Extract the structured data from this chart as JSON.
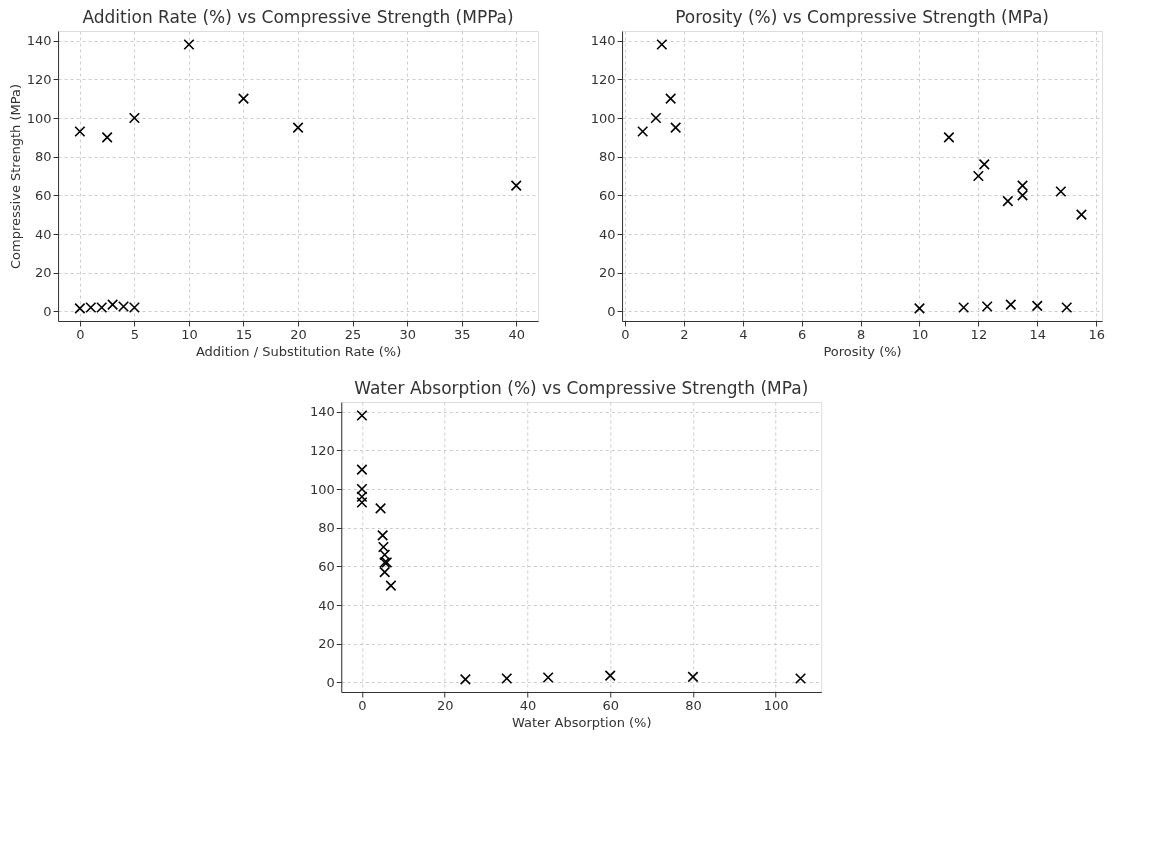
{
  "chart_data": [
    {
      "type": "scatter",
      "title": "Addition Rate (%) vs Compressive Strength (MPPa)",
      "xlabel": "Addition / Substitution Rate (%)",
      "ylabel": "Compressive Strength (MPa)",
      "marker": "cross",
      "grid": true,
      "xlim": [
        -2,
        42
      ],
      "xticks": [
        0,
        5,
        10,
        15,
        20,
        25,
        30,
        35,
        40
      ],
      "ylim": [
        -5,
        145
      ],
      "yticks": [
        0,
        20,
        40,
        60,
        80,
        100,
        120,
        140
      ],
      "series": [
        {
          "color": "#000000",
          "x": [
            0,
            1,
            2,
            3,
            4,
            5,
            0,
            2.5,
            5,
            10,
            15,
            20,
            40
          ],
          "values": [
            1.5,
            2,
            2,
            3.5,
            2.5,
            2,
            93,
            90,
            100,
            138,
            110,
            95,
            65
          ]
        }
      ]
    },
    {
      "type": "scatter",
      "title": "Porosity (%) vs Compressive Strength (MPa)",
      "xlabel": "Porosity (%)",
      "marker": "cross",
      "grid": true,
      "xlim": [
        -0.1,
        16.2
      ],
      "xticks": [
        0,
        2,
        4,
        6,
        8,
        10,
        12,
        14,
        16
      ],
      "ylim": [
        -5,
        145
      ],
      "yticks": [
        0,
        20,
        40,
        60,
        80,
        100,
        120,
        140
      ],
      "series": [
        {
          "color": "#000000",
          "x": [
            0.6,
            1.05,
            1.25,
            1.55,
            1.72,
            11,
            12,
            12.2,
            13,
            13.5,
            13.5,
            14.8,
            15.5,
            10,
            11.5,
            12.3,
            13.1,
            14,
            15
          ],
          "values": [
            93,
            100,
            138,
            110,
            95,
            90,
            70,
            76,
            57,
            65,
            60,
            62,
            50,
            1.5,
            2,
            2.5,
            3.5,
            2.8,
            2
          ]
        }
      ]
    },
    {
      "type": "scatter",
      "title": "Water Absorption (%) vs Compressive Strength (MPa)",
      "xlabel": "Water Absorption (%)",
      "marker": "cross",
      "grid": true,
      "xlim": [
        -5,
        111
      ],
      "xticks": [
        0,
        20,
        40,
        60,
        80,
        100
      ],
      "ylim": [
        -5,
        145
      ],
      "yticks": [
        0,
        20,
        40,
        60,
        80,
        100,
        120,
        140
      ],
      "series": [
        {
          "color": "#000000",
          "x": [
            0,
            0,
            0,
            0,
            0,
            4.5,
            5,
            5.2,
            5.5,
            5.5,
            6,
            5.5,
            7,
            25,
            35,
            45,
            60,
            80,
            106
          ],
          "values": [
            138,
            110,
            100,
            96,
            93,
            90,
            76,
            70,
            66,
            62,
            62,
            57,
            50,
            1.5,
            2,
            2.5,
            3.5,
            2.8,
            2
          ]
        }
      ]
    }
  ]
}
